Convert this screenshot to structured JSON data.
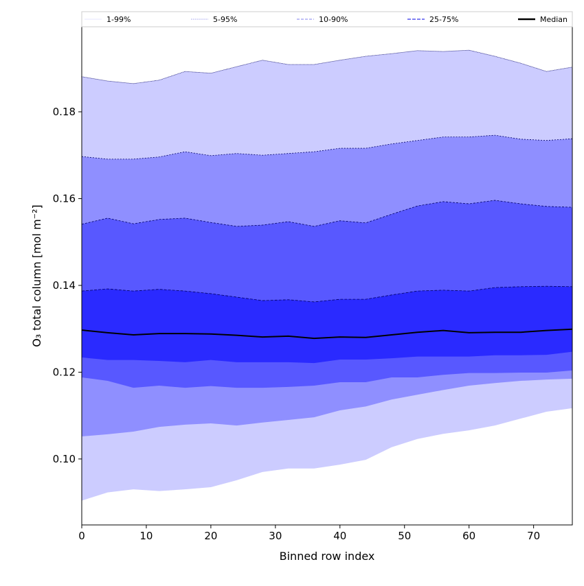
{
  "chart_data": {
    "type": "area",
    "title": "",
    "xlabel": "Binned row index",
    "ylabel": "O₃ total column [mol m⁻²]",
    "xlim": [
      0,
      76
    ],
    "ylim": [
      0.0848,
      0.1996
    ],
    "xticks": [
      0,
      10,
      20,
      30,
      40,
      50,
      60,
      70
    ],
    "xtick_labels": [
      "0",
      "10",
      "20",
      "30",
      "40",
      "50",
      "60",
      "70"
    ],
    "yticks": [
      0.1,
      0.12,
      0.14,
      0.16,
      0.18
    ],
    "ytick_labels": [
      "0.10",
      "0.12",
      "0.14",
      "0.16",
      "0.18"
    ],
    "grid": false,
    "legend_placement": "top, above plot",
    "x": [
      0,
      4,
      8,
      12,
      16,
      20,
      24,
      28,
      32,
      36,
      40,
      44,
      48,
      52,
      56,
      60,
      64,
      68,
      72,
      76
    ],
    "percentiles": {
      "p1": [
        0.0904,
        0.0923,
        0.093,
        0.0926,
        0.093,
        0.0935,
        0.0951,
        0.097,
        0.0978,
        0.0978,
        0.0987,
        0.0998,
        0.1027,
        0.1046,
        0.1058,
        0.1066,
        0.1077,
        0.1093,
        0.1109,
        0.1117
      ],
      "p5": [
        0.1052,
        0.1057,
        0.1063,
        0.1074,
        0.1079,
        0.1082,
        0.1077,
        0.1084,
        0.109,
        0.1096,
        0.1112,
        0.1121,
        0.1137,
        0.1148,
        0.1159,
        0.1169,
        0.1175,
        0.118,
        0.1183,
        0.1185
      ],
      "p10": [
        0.1188,
        0.118,
        0.1164,
        0.1169,
        0.1164,
        0.1168,
        0.1164,
        0.1164,
        0.1166,
        0.1169,
        0.1177,
        0.1177,
        0.1188,
        0.1188,
        0.1194,
        0.1198,
        0.1198,
        0.1199,
        0.1199,
        0.1204
      ],
      "p25": [
        0.1234,
        0.1228,
        0.1228,
        0.1226,
        0.1223,
        0.1228,
        0.1223,
        0.1223,
        0.1223,
        0.1221,
        0.1229,
        0.1229,
        0.1232,
        0.1236,
        0.1236,
        0.1236,
        0.1239,
        0.1239,
        0.124,
        0.1247
      ],
      "p50": [
        0.1297,
        0.1291,
        0.1286,
        0.1289,
        0.1289,
        0.1288,
        0.1285,
        0.1281,
        0.1283,
        0.1278,
        0.1281,
        0.128,
        0.1286,
        0.1292,
        0.1296,
        0.1291,
        0.1292,
        0.1292,
        0.1296,
        0.1299
      ],
      "p75": [
        0.1387,
        0.1392,
        0.1387,
        0.1391,
        0.1387,
        0.1381,
        0.1373,
        0.1365,
        0.1367,
        0.1362,
        0.1368,
        0.1368,
        0.1378,
        0.1387,
        0.1389,
        0.1387,
        0.1395,
        0.1397,
        0.1398,
        0.1397
      ],
      "p90": [
        0.1541,
        0.1555,
        0.1542,
        0.1552,
        0.1555,
        0.1545,
        0.1536,
        0.1539,
        0.1547,
        0.1536,
        0.1549,
        0.1544,
        0.1564,
        0.1583,
        0.1593,
        0.1588,
        0.1596,
        0.1588,
        0.1582,
        0.158
      ],
      "p95": [
        0.1697,
        0.1691,
        0.1691,
        0.1696,
        0.1708,
        0.1699,
        0.1704,
        0.17,
        0.1704,
        0.1708,
        0.1716,
        0.1716,
        0.1726,
        0.1734,
        0.1742,
        0.1742,
        0.1746,
        0.1737,
        0.1734,
        0.1738
      ],
      "p99": [
        0.1881,
        0.1871,
        0.1865,
        0.1873,
        0.1893,
        0.1889,
        0.1904,
        0.1919,
        0.1909,
        0.1909,
        0.1919,
        0.1928,
        0.1934,
        0.1941,
        0.1939,
        0.1942,
        0.1928,
        0.1912,
        0.1893,
        0.1903
      ]
    },
    "series": [
      {
        "name": "1-99%",
        "lower": "p1",
        "upper": "p99",
        "color": "#ccccff"
      },
      {
        "name": "5-95%",
        "lower": "p5",
        "upper": "p95",
        "color": "#8f8fff"
      },
      {
        "name": "10-90%",
        "lower": "p10",
        "upper": "p90",
        "color": "#5858ff"
      },
      {
        "name": "25-75%",
        "lower": "p25",
        "upper": "p75",
        "color": "#2a2aff"
      },
      {
        "name": "Median",
        "line": "p50",
        "color": "#000000"
      }
    ]
  }
}
